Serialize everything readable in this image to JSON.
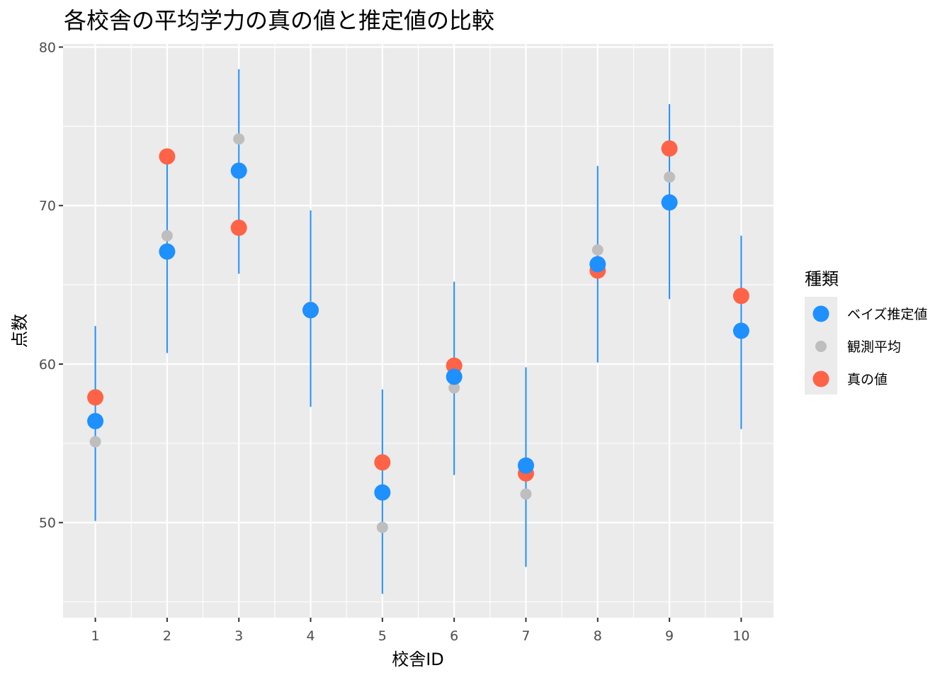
{
  "chart_data": {
    "type": "scatter",
    "title": "各校舎の平均学力の真の値と推定値の比較",
    "xlabel": "校舎ID",
    "ylabel": "点数",
    "x": [
      1,
      2,
      3,
      4,
      5,
      6,
      7,
      8,
      9,
      10
    ],
    "x_ticks": [
      "1",
      "2",
      "3",
      "4",
      "5",
      "6",
      "7",
      "8",
      "9",
      "10"
    ],
    "y_ticks": [
      50,
      60,
      70,
      80
    ],
    "ylim": [
      44.0,
      80.2
    ],
    "grid": true,
    "legend": {
      "title": "種類",
      "position": "right",
      "entries": [
        "ベイズ推定値",
        "観測平均",
        "真の値"
      ]
    },
    "series": [
      {
        "name": "ベイズ推定値",
        "color": "#1E90FF",
        "values": [
          56.4,
          67.1,
          72.2,
          63.4,
          51.9,
          59.2,
          53.6,
          66.3,
          70.2,
          62.1
        ]
      },
      {
        "name": "観測平均",
        "color": "#BEBEBE",
        "values": [
          55.1,
          68.1,
          74.2,
          63.6,
          49.7,
          58.5,
          51.8,
          67.2,
          71.8,
          62.1
        ]
      },
      {
        "name": "真の値",
        "color": "#FF6347",
        "values": [
          57.9,
          73.1,
          68.6,
          63.4,
          53.8,
          59.9,
          53.1,
          65.9,
          73.6,
          64.3
        ]
      }
    ],
    "intervals": {
      "series": "ベイズ推定値",
      "color": "#1E90FF",
      "lower": [
        50.1,
        60.7,
        65.7,
        57.3,
        45.5,
        53.0,
        47.2,
        60.1,
        64.1,
        55.9
      ],
      "upper": [
        62.4,
        73.4,
        78.6,
        69.7,
        58.4,
        65.2,
        59.8,
        72.5,
        76.4,
        68.1
      ]
    }
  }
}
